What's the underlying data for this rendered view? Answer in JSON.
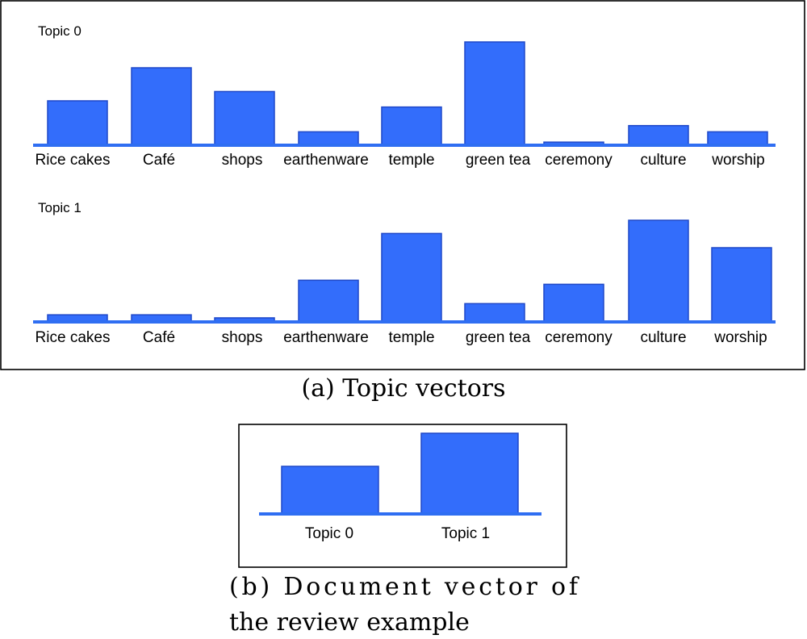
{
  "colors": {
    "bar": "#336dfb",
    "bar_edge": "#1f48c8",
    "axis": "#2f6ef2",
    "frame": "#000000"
  },
  "chart_data": [
    {
      "type": "bar",
      "title": "Topic 0",
      "categories": [
        "Rice cakes",
        "Café",
        "shops",
        "earthenware",
        "temple",
        "green tea",
        "ceremony",
        "culture",
        "worship"
      ],
      "values": [
        0.43,
        0.75,
        0.52,
        0.13,
        0.37,
        1.0,
        0.03,
        0.19,
        0.13
      ],
      "ylim": [
        0,
        1
      ],
      "grid": false,
      "legend": "none"
    },
    {
      "type": "bar",
      "title": "Topic 1",
      "categories": [
        "Rice cakes",
        "Café",
        "shops",
        "earthenware",
        "temple",
        "green tea",
        "ceremony",
        "culture",
        "worship"
      ],
      "values": [
        0.07,
        0.07,
        0.04,
        0.41,
        0.87,
        0.18,
        0.37,
        1.0,
        0.73
      ],
      "ylim": [
        0,
        1
      ],
      "grid": false,
      "legend": "none"
    },
    {
      "type": "bar",
      "title": "",
      "categories": [
        "Topic 0",
        "Topic 1"
      ],
      "values": [
        0.59,
        1.0
      ],
      "ylim": [
        0,
        1
      ],
      "grid": false,
      "legend": "none"
    }
  ],
  "captions": {
    "a": "(a) Topic vectors",
    "b_line1": "(b) Document vector of",
    "b_line2": "the review example"
  }
}
